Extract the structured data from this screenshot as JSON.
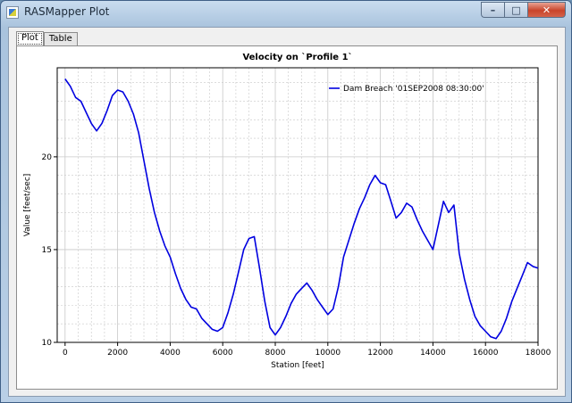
{
  "window": {
    "title": "RASMapper Plot",
    "controls": {
      "minimize": "–",
      "maximize": "□",
      "close": "✕"
    }
  },
  "tabs": [
    {
      "label": "Plot",
      "active": true
    },
    {
      "label": "Table",
      "active": false
    }
  ],
  "colors": {
    "series": "#0000e0",
    "grid": "#c8c8c8"
  },
  "chart_data": {
    "type": "line",
    "title": "Velocity on `Profile 1`",
    "xlabel": "Station [feet]",
    "ylabel": "Value [feet/sec]",
    "xlim": [
      -300,
      18000
    ],
    "ylim": [
      10,
      24.8
    ],
    "xticks": [
      0,
      2000,
      4000,
      6000,
      8000,
      10000,
      12000,
      14000,
      16000,
      18000
    ],
    "yticks": [
      10,
      15,
      20
    ],
    "grid": true,
    "legend_position": "top-right",
    "series": [
      {
        "name": "Dam Breach '01SEP2008 08:30:00'",
        "x": [
          0,
          200,
          400,
          600,
          800,
          1000,
          1200,
          1400,
          1600,
          1800,
          2000,
          2200,
          2400,
          2600,
          2800,
          3000,
          3200,
          3400,
          3600,
          3800,
          4000,
          4200,
          4400,
          4600,
          4800,
          5000,
          5200,
          5400,
          5600,
          5800,
          6000,
          6200,
          6400,
          6600,
          6800,
          7000,
          7200,
          7400,
          7600,
          7800,
          8000,
          8200,
          8400,
          8600,
          8800,
          9000,
          9200,
          9400,
          9600,
          9800,
          10000,
          10200,
          10400,
          10600,
          10800,
          11000,
          11200,
          11400,
          11600,
          11800,
          12000,
          12200,
          12400,
          12600,
          12800,
          13000,
          13200,
          13400,
          13600,
          13800,
          14000,
          14200,
          14400,
          14600,
          14800,
          15000,
          15200,
          15400,
          15600,
          15800,
          16000,
          16200,
          16400,
          16600,
          16800,
          17000,
          17200,
          17400,
          17600,
          17800,
          18000
        ],
        "values": [
          24.2,
          23.8,
          23.2,
          23.0,
          22.4,
          21.8,
          21.4,
          21.8,
          22.5,
          23.3,
          23.6,
          23.5,
          23.0,
          22.3,
          21.3,
          19.8,
          18.3,
          17.0,
          16.0,
          15.2,
          14.6,
          13.7,
          12.9,
          12.3,
          11.9,
          11.8,
          11.3,
          11.0,
          10.7,
          10.6,
          10.8,
          11.6,
          12.6,
          13.8,
          15.0,
          15.6,
          15.7,
          14.0,
          12.2,
          10.8,
          10.4,
          10.8,
          11.4,
          12.1,
          12.6,
          12.9,
          13.2,
          12.8,
          12.3,
          11.9,
          11.5,
          11.8,
          13.0,
          14.6,
          15.5,
          16.4,
          17.2,
          17.8,
          18.5,
          19.0,
          18.6,
          18.5,
          17.6,
          16.7,
          17.0,
          17.5,
          17.3,
          16.6,
          16.0,
          15.5,
          15.0,
          16.3,
          17.6,
          17.0,
          17.4,
          14.8,
          13.4,
          12.3,
          11.4,
          10.9,
          10.6,
          10.3,
          10.2,
          10.6,
          11.3,
          12.2,
          12.9,
          13.6,
          14.3,
          14.1,
          14.0
        ]
      }
    ]
  }
}
